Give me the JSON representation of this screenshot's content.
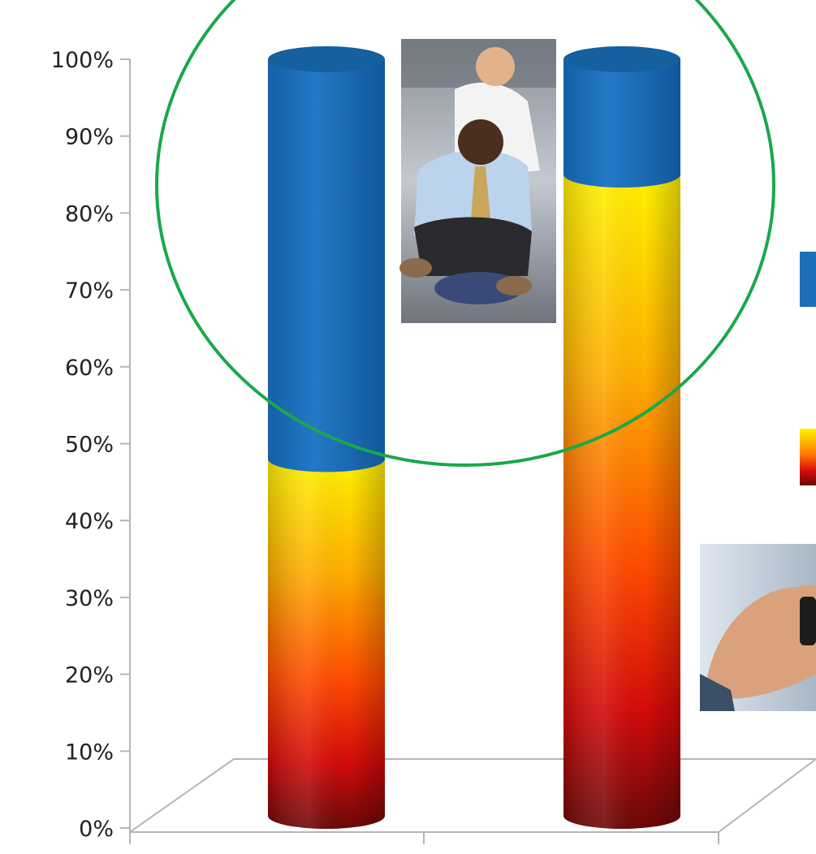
{
  "chart_data": {
    "type": "bar",
    "stacked": true,
    "orientation": "vertical",
    "three_d": true,
    "title": "",
    "xlabel": "",
    "ylabel": "",
    "ylim": [
      0,
      100
    ],
    "y_ticks": [
      "0%",
      "10%",
      "20%",
      "30%",
      "40%",
      "50%",
      "60%",
      "70%",
      "80%",
      "90%",
      "100%"
    ],
    "categories": [
      "",
      ""
    ],
    "series": [
      {
        "color": "#f3a000",
        "values": [
          48,
          85
        ]
      },
      {
        "color": "#1e6fb8",
        "values": [
          52,
          15
        ]
      }
    ],
    "legend": {
      "position": "right"
    },
    "grid": false
  },
  "colors": {
    "gradient_top": "#fff200",
    "gradient_mid": "#ff8a00",
    "gradient_low": "#e01010",
    "gradient_bottom": "#6a0808",
    "blue": "#1e6fb8",
    "highlight_circle": "#1aa84a",
    "axis": "#b5b5b5"
  },
  "annotations": {
    "highlight": {
      "shape": "ellipse",
      "color": "#1aa84a",
      "target": "blue segment, top of bars"
    },
    "photos": [
      {
        "name": "office-chair-photo",
        "depicts": "two businessmen riding an office chair"
      },
      {
        "name": "handshake-photo",
        "depicts": "business handshake"
      }
    ]
  }
}
